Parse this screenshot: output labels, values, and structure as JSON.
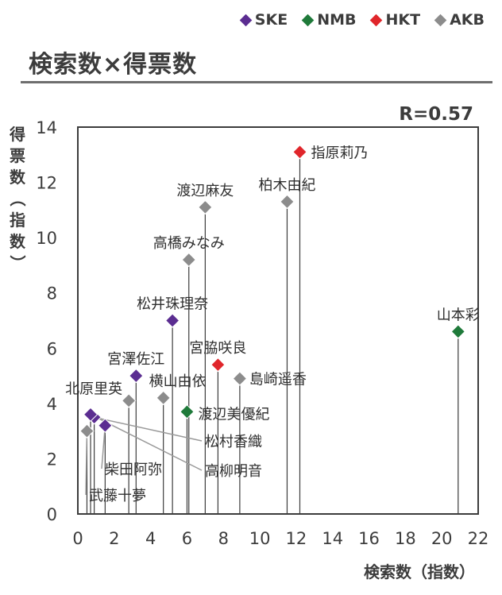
{
  "legend": [
    {
      "name": "SKE",
      "color": "#5b2d91"
    },
    {
      "name": "NMB",
      "color": "#1f7a3a"
    },
    {
      "name": "HKT",
      "color": "#e0262b"
    },
    {
      "name": "AKB",
      "color": "#8c8c8c"
    }
  ],
  "chart_data": {
    "type": "scatter",
    "title": "検索数×得票数",
    "xlabel": "検索数（指数）",
    "ylabel": "得票数（指数）",
    "annotation": "R=0.57",
    "xlim": [
      0,
      22
    ],
    "ylim": [
      0,
      14
    ],
    "xticks": [
      0,
      2,
      4,
      6,
      8,
      10,
      12,
      14,
      16,
      18,
      20,
      22
    ],
    "yticks": [
      0,
      2,
      4,
      6,
      8,
      10,
      12,
      14
    ],
    "grid": false,
    "legend_position": "top-right",
    "points": [
      {
        "label": "指原莉乃",
        "group": "HKT",
        "x": 12.2,
        "y": 13.1
      },
      {
        "label": "柏木由紀",
        "group": "AKB",
        "x": 11.5,
        "y": 11.3
      },
      {
        "label": "渡辺麻友",
        "group": "AKB",
        "x": 7.0,
        "y": 11.1
      },
      {
        "label": "高橋みなみ",
        "group": "AKB",
        "x": 6.1,
        "y": 9.2
      },
      {
        "label": "山本彩",
        "group": "NMB",
        "x": 20.9,
        "y": 6.6
      },
      {
        "label": "松井珠理奈",
        "group": "SKE",
        "x": 5.2,
        "y": 7.0
      },
      {
        "label": "宮脇咲良",
        "group": "HKT",
        "x": 7.7,
        "y": 5.4
      },
      {
        "label": "宮澤佐江",
        "group": "SKE",
        "x": 3.2,
        "y": 5.0
      },
      {
        "label": "島崎遥香",
        "group": "AKB",
        "x": 8.9,
        "y": 4.9
      },
      {
        "label": "横山由依",
        "group": "AKB",
        "x": 4.7,
        "y": 4.2
      },
      {
        "label": "北原里英",
        "group": "AKB",
        "x": 2.8,
        "y": 4.1
      },
      {
        "label": "渡辺美優紀",
        "group": "NMB",
        "x": 6.0,
        "y": 3.7
      },
      {
        "label": "松村香織",
        "group": "SKE",
        "x": 0.9,
        "y": 3.5
      },
      {
        "label": "高柳明音",
        "group": "SKE",
        "x": 0.7,
        "y": 3.6
      },
      {
        "label": "柴田阿弥",
        "group": "SKE",
        "x": 1.5,
        "y": 3.2
      },
      {
        "label": "武藤十夢",
        "group": "AKB",
        "x": 0.5,
        "y": 3.0
      }
    ]
  }
}
